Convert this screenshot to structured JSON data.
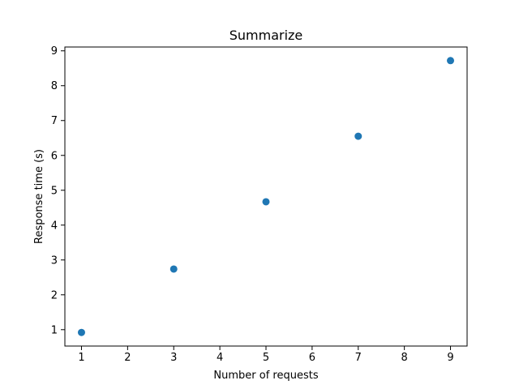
{
  "chart_data": {
    "type": "scatter",
    "title": "Summarize",
    "xlabel": "Number of requests",
    "ylabel": "Response time (s)",
    "xlim": [
      0.64,
      9.36
    ],
    "ylim": [
      0.53,
      9.11
    ],
    "xticks": [
      1,
      2,
      3,
      4,
      5,
      6,
      7,
      8,
      9
    ],
    "yticks": [
      1,
      2,
      3,
      4,
      5,
      6,
      7,
      8,
      9
    ],
    "grid": false,
    "series": [
      {
        "color": "#1f77b4",
        "points": [
          {
            "x": 1,
            "y": 0.92
          },
          {
            "x": 3,
            "y": 2.74
          },
          {
            "x": 5,
            "y": 4.67
          },
          {
            "x": 7,
            "y": 6.55
          },
          {
            "x": 9,
            "y": 8.72
          }
        ]
      }
    ]
  }
}
